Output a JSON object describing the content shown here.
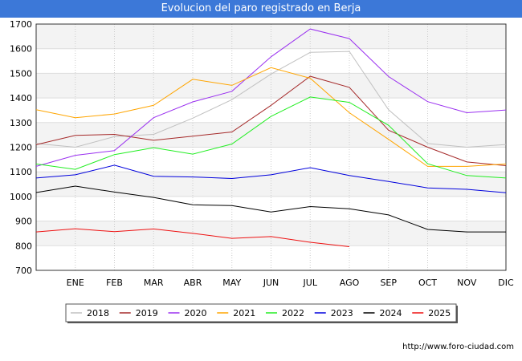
{
  "header": {
    "title": "Evolucion del paro registrado en Berja"
  },
  "footer": {
    "url": "http://www.foro-ciudad.com"
  },
  "chart_data": {
    "type": "line",
    "title": "Evolucion del paro registrado en Berja",
    "xlabel": "",
    "ylabel": "",
    "categories": [
      "",
      "ENE",
      "FEB",
      "MAR",
      "ABR",
      "MAY",
      "JUN",
      "JUL",
      "AGO",
      "SEP",
      "OCT",
      "NOV",
      "DIC"
    ],
    "ylim": [
      700,
      1700
    ],
    "yticks": [
      700,
      800,
      900,
      1000,
      1100,
      1200,
      1300,
      1400,
      1500,
      1600,
      1700
    ],
    "grid": true,
    "legend_position": "bottom",
    "series": [
      {
        "name": "2018",
        "color": "#c0c0c0",
        "values": [
          1215,
          1200,
          1243,
          1252,
          1318,
          1393,
          1497,
          1585,
          1589,
          1352,
          1215,
          1200,
          1211
        ]
      },
      {
        "name": "2019",
        "color": "#a52a2a",
        "values": [
          1210,
          1248,
          1252,
          1228,
          1245,
          1262,
          1370,
          1488,
          1443,
          1269,
          1200,
          1140,
          1125
        ]
      },
      {
        "name": "2020",
        "color": "#9a30f0",
        "values": [
          1122,
          1167,
          1186,
          1320,
          1384,
          1427,
          1567,
          1680,
          1641,
          1487,
          1385,
          1340,
          1351
        ]
      },
      {
        "name": "2021",
        "color": "#ffa500",
        "values": [
          1352,
          1320,
          1335,
          1370,
          1476,
          1451,
          1523,
          1480,
          1340,
          1232,
          1122,
          1122,
          1132
        ]
      },
      {
        "name": "2022",
        "color": "#22ee22",
        "values": [
          1132,
          1110,
          1170,
          1198,
          1172,
          1213,
          1325,
          1404,
          1382,
          1289,
          1133,
          1085,
          1075
        ]
      },
      {
        "name": "2023",
        "color": "#0000dd",
        "values": [
          1075,
          1088,
          1127,
          1082,
          1079,
          1073,
          1088,
          1117,
          1085,
          1061,
          1035,
          1029,
          1015
        ]
      },
      {
        "name": "2024",
        "color": "#000000",
        "values": [
          1016,
          1042,
          1018,
          996,
          966,
          963,
          937,
          959,
          950,
          925,
          866,
          856,
          856
        ]
      },
      {
        "name": "2025",
        "color": "#ee1111",
        "values": [
          856,
          869,
          857,
          868,
          850,
          830,
          837,
          814,
          796,
          null,
          null,
          null,
          null
        ]
      }
    ]
  }
}
